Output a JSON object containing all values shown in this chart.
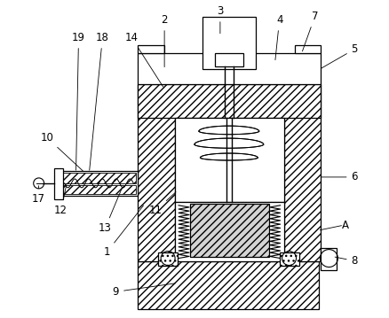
{
  "background_color": "#ffffff",
  "line_color": "#000000",
  "figsize": [
    4.38,
    3.59
  ],
  "dpi": 100,
  "gray_fill": "#c8c8c8",
  "light_gray": "#e8e8e8"
}
